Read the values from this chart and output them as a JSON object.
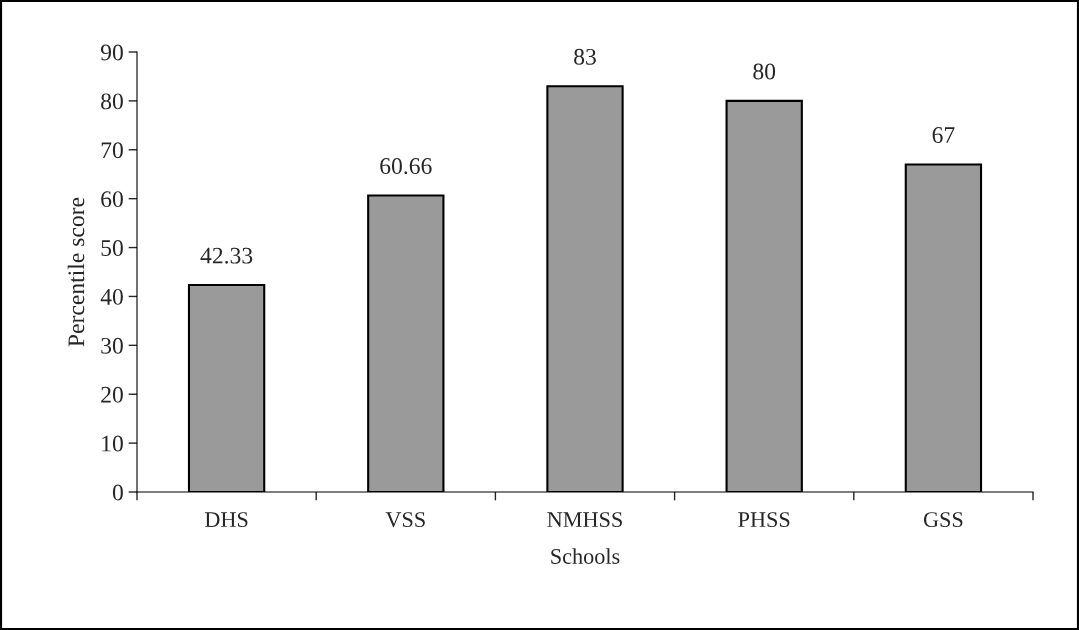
{
  "chart_data": {
    "type": "bar",
    "xlabel": "Schools",
    "ylabel": "Percentile score",
    "categories": [
      "DHS",
      "VSS",
      "NMHSS",
      "PHSS",
      "GSS"
    ],
    "values": [
      42.33,
      60.66,
      83,
      80,
      67
    ],
    "color": "#9a9a9a",
    "ylim": [
      0,
      90
    ],
    "yticks": [
      0,
      10,
      20,
      30,
      40,
      50,
      60,
      70,
      80,
      90
    ],
    "data_labels": true,
    "grid": false,
    "legend": false
  }
}
